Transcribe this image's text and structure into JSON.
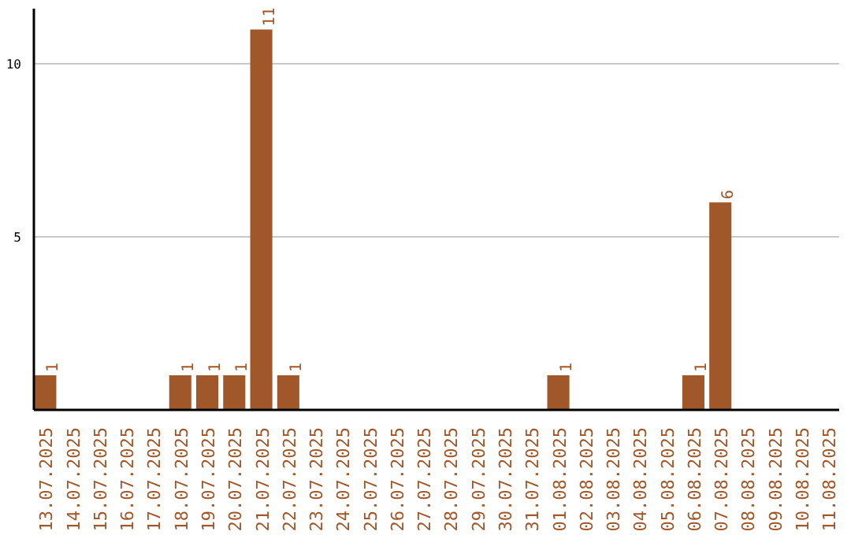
{
  "chart_data": {
    "type": "bar",
    "categories": [
      "13.07.2025",
      "14.07.2025",
      "15.07.2025",
      "16.07.2025",
      "17.07.2025",
      "18.07.2025",
      "19.07.2025",
      "20.07.2025",
      "21.07.2025",
      "22.07.2025",
      "23.07.2025",
      "24.07.2025",
      "25.07.2025",
      "26.07.2025",
      "27.07.2025",
      "28.07.2025",
      "29.07.2025",
      "30.07.2025",
      "31.07.2025",
      "01.08.2025",
      "02.08.2025",
      "03.08.2025",
      "04.08.2025",
      "05.08.2025",
      "06.08.2025",
      "07.08.2025",
      "08.08.2025",
      "09.08.2025",
      "10.08.2025",
      "11.08.2025"
    ],
    "values": [
      1,
      0,
      0,
      0,
      0,
      1,
      1,
      1,
      11,
      1,
      0,
      0,
      0,
      0,
      0,
      0,
      0,
      0,
      0,
      1,
      0,
      0,
      0,
      0,
      1,
      6,
      0,
      0,
      0,
      0
    ],
    "value_labels": [
      "1",
      null,
      null,
      null,
      null,
      "1",
      "1",
      "1",
      "11",
      "1",
      null,
      null,
      null,
      null,
      null,
      null,
      null,
      null,
      null,
      "1",
      null,
      null,
      null,
      null,
      "1",
      "6",
      null,
      null,
      null,
      null
    ],
    "color": "#a0572a",
    "ylim": [
      0,
      11.6
    ],
    "yticks": [
      5,
      10
    ],
    "grid": "y"
  }
}
